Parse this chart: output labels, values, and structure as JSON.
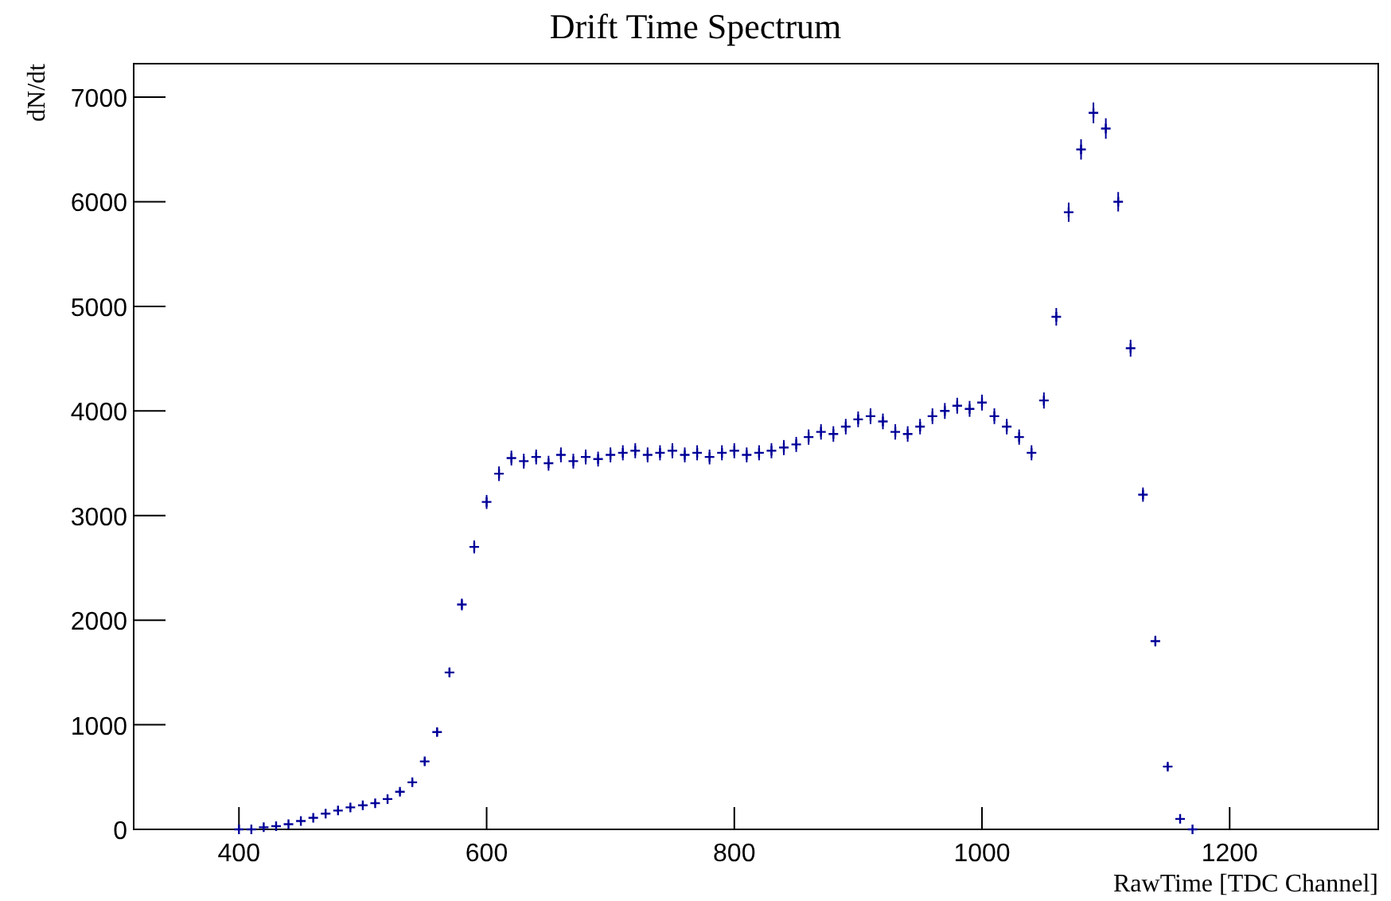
{
  "chart_data": {
    "type": "scatter",
    "title": "Drift Time Spectrum",
    "xlabel": "RawTime   [TDC Channel]",
    "ylabel": "dN/dt",
    "marker": "cross",
    "grid": false,
    "xlim": [
      315,
      1320
    ],
    "xticks": [
      400,
      600,
      800,
      1000,
      1200
    ],
    "ylim": [
      0,
      7320
    ],
    "yticks": [
      0,
      1000,
      2000,
      3000,
      4000,
      5000,
      6000,
      7000
    ],
    "series": [
      {
        "color": "#000099",
        "x": [
          400,
          410,
          420,
          430,
          440,
          450,
          460,
          470,
          480,
          490,
          500,
          510,
          520,
          530,
          540,
          550,
          560,
          570,
          580,
          590,
          600,
          610,
          620,
          630,
          640,
          650,
          660,
          670,
          680,
          690,
          700,
          710,
          720,
          730,
          740,
          750,
          760,
          770,
          780,
          790,
          800,
          810,
          820,
          830,
          840,
          850,
          860,
          870,
          880,
          890,
          900,
          910,
          920,
          930,
          940,
          950,
          960,
          970,
          980,
          990,
          1000,
          1010,
          1020,
          1030,
          1040,
          1050,
          1060,
          1070,
          1080,
          1090,
          1100,
          1110,
          1120,
          1130,
          1140,
          1150,
          1160,
          1170
        ],
        "values": [
          0,
          0,
          20,
          30,
          50,
          80,
          110,
          150,
          180,
          210,
          230,
          250,
          290,
          360,
          450,
          650,
          930,
          1500,
          2150,
          2700,
          3130,
          3400,
          3550,
          3520,
          3560,
          3500,
          3580,
          3520,
          3560,
          3540,
          3580,
          3600,
          3620,
          3580,
          3600,
          3620,
          3580,
          3600,
          3560,
          3600,
          3620,
          3580,
          3600,
          3620,
          3650,
          3680,
          3750,
          3800,
          3780,
          3850,
          3920,
          3950,
          3900,
          3800,
          3780,
          3850,
          3950,
          4000,
          4050,
          4020,
          4080,
          3950,
          3850,
          3750,
          3600,
          4100,
          4900,
          5900,
          6500,
          6850,
          6700,
          6000,
          4600,
          3200,
          1800,
          600,
          100,
          0
        ],
        "errors": [
          null,
          null,
          null,
          null,
          null,
          11,
          13,
          15,
          16,
          17,
          18,
          19,
          20,
          23,
          25,
          31,
          37,
          46,
          56,
          62,
          67,
          70,
          71,
          71,
          71,
          71,
          71,
          71,
          71,
          71,
          71,
          72,
          72,
          71,
          72,
          72,
          71,
          72,
          71,
          72,
          72,
          71,
          72,
          72,
          72,
          72,
          73,
          74,
          74,
          74,
          75,
          75,
          75,
          74,
          74,
          74,
          75,
          76,
          76,
          76,
          76,
          75,
          74,
          73,
          72,
          77,
          84,
          92,
          97,
          99,
          98,
          93,
          81,
          68,
          51,
          29,
          12,
          null
        ]
      }
    ]
  }
}
